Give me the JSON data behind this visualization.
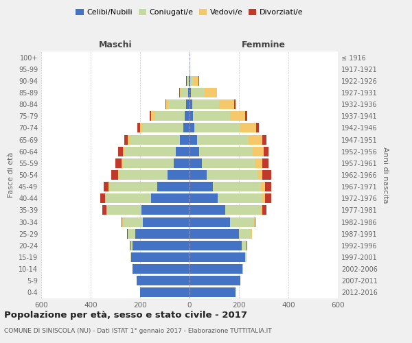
{
  "age_groups": [
    "0-4",
    "5-9",
    "10-14",
    "15-19",
    "20-24",
    "25-29",
    "30-34",
    "35-39",
    "40-44",
    "45-49",
    "50-54",
    "55-59",
    "60-64",
    "65-69",
    "70-74",
    "75-79",
    "80-84",
    "85-89",
    "90-94",
    "95-99",
    "100+"
  ],
  "birth_years": [
    "2012-2016",
    "2007-2011",
    "2002-2006",
    "1997-2001",
    "1992-1996",
    "1987-1991",
    "1982-1986",
    "1977-1981",
    "1972-1976",
    "1967-1971",
    "1962-1966",
    "1957-1961",
    "1952-1956",
    "1947-1951",
    "1942-1946",
    "1937-1941",
    "1932-1936",
    "1927-1931",
    "1922-1926",
    "1917-1921",
    "≤ 1916"
  ],
  "males": {
    "celibe": [
      200,
      215,
      230,
      235,
      230,
      220,
      190,
      195,
      155,
      130,
      90,
      65,
      55,
      40,
      25,
      20,
      15,
      5,
      2,
      0,
      0
    ],
    "coniugato": [
      0,
      0,
      1,
      3,
      10,
      30,
      80,
      140,
      185,
      195,
      195,
      205,
      210,
      200,
      165,
      120,
      70,
      30,
      8,
      1,
      0
    ],
    "vedovo": [
      0,
      0,
      0,
      0,
      0,
      0,
      1,
      2,
      2,
      3,
      3,
      5,
      5,
      10,
      10,
      15,
      10,
      5,
      2,
      0,
      0
    ],
    "divorziato": [
      0,
      0,
      0,
      0,
      1,
      2,
      5,
      15,
      20,
      20,
      30,
      25,
      20,
      15,
      10,
      5,
      3,
      2,
      1,
      0,
      0
    ]
  },
  "females": {
    "nubile": [
      185,
      205,
      215,
      225,
      210,
      200,
      165,
      145,
      115,
      95,
      70,
      50,
      40,
      30,
      20,
      15,
      10,
      5,
      2,
      0,
      0
    ],
    "coniugata": [
      0,
      0,
      1,
      5,
      20,
      50,
      95,
      145,
      180,
      195,
      205,
      215,
      215,
      210,
      185,
      150,
      110,
      55,
      15,
      2,
      0
    ],
    "vedova": [
      0,
      0,
      0,
      0,
      1,
      2,
      3,
      5,
      10,
      15,
      20,
      30,
      45,
      55,
      65,
      60,
      60,
      50,
      20,
      2,
      0
    ],
    "divorziata": [
      0,
      0,
      0,
      0,
      1,
      2,
      5,
      15,
      25,
      25,
      35,
      25,
      20,
      15,
      10,
      8,
      5,
      2,
      1,
      0,
      0
    ]
  },
  "colors": {
    "celibe": "#4472C4",
    "coniugato": "#C5D9A0",
    "vedovo": "#F5C96A",
    "divorziato": "#C0392B"
  },
  "legend_labels": [
    "Celibi/Nubili",
    "Coniugati/e",
    "Vedovi/e",
    "Divorziati/e"
  ],
  "title": "Popolazione per età, sesso e stato civile - 2017",
  "subtitle": "COMUNE DI SINISCOLA (NU) - Dati ISTAT 1° gennaio 2017 - Elaborazione TUTTITALIA.IT",
  "xlabel_maschi": "Maschi",
  "xlabel_femmine": "Femmine",
  "ylabel_left": "Fasce di età",
  "ylabel_right": "Anni di nascita",
  "xlim": 600,
  "bg_color": "#f0f0f0",
  "plot_bg": "#ffffff"
}
